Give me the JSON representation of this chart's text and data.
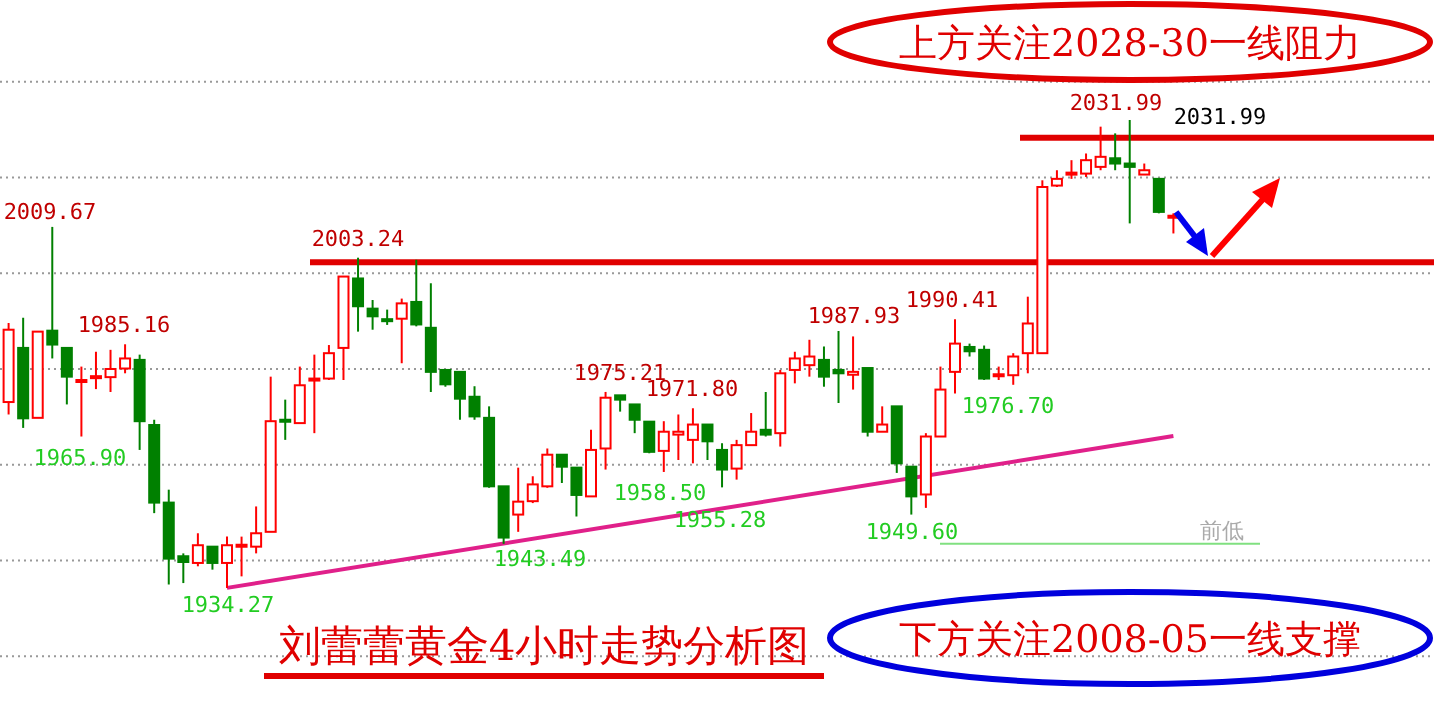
{
  "chart_data": {
    "type": "candlestick",
    "title": "刘蕾蕾黄金4小时走势分析图",
    "categories": [
      null,
      null,
      null,
      null,
      null,
      null,
      null,
      null,
      null,
      null,
      null,
      null,
      null,
      null,
      null,
      null,
      null,
      null,
      null,
      null,
      null,
      null,
      null,
      null,
      null,
      null,
      null,
      null,
      null,
      null,
      null,
      null,
      null,
      null,
      null,
      null,
      null,
      null,
      null,
      null,
      null,
      null,
      null,
      null,
      null,
      null,
      null,
      null,
      null,
      null,
      null,
      null,
      null,
      null,
      null,
      null,
      null,
      null,
      null,
      null,
      null,
      null,
      null,
      null,
      null,
      null,
      null,
      null,
      null,
      null,
      null,
      null,
      null,
      null,
      null,
      null,
      null,
      null,
      null,
      null,
      null
    ],
    "ohlc": [
      [
        1973.1,
        1989.6,
        1970.5,
        1988.2
      ],
      [
        1984.4,
        1990.7,
        1967.7,
        1969.7
      ],
      [
        1969.8,
        1987.8,
        1969.8,
        1987.8
      ],
      [
        1988.0,
        2009.67,
        1982.2,
        1985.1
      ],
      [
        1984.4,
        1984.4,
        1972.6,
        1978.4
      ],
      [
        1977.4,
        1980.5,
        1965.9,
        1977.7
      ],
      [
        1978.2,
        1983.6,
        1975.8,
        1978.5
      ],
      [
        1978.3,
        1984.0,
        1975.2,
        1980.0
      ],
      [
        1980.1,
        1985.16,
        1979.1,
        1982.2
      ],
      [
        1981.9,
        1983.0,
        1963.1,
        1969.1
      ],
      [
        1968.3,
        1969.4,
        1949.9,
        1952.1
      ],
      [
        1952.1,
        1954.8,
        1935.0,
        1940.4
      ],
      [
        1940.9,
        1941.5,
        1935.3,
        1939.7
      ],
      [
        1939.5,
        1945.7,
        1938.8,
        1943.2
      ],
      [
        1942.9,
        1942.9,
        1938.1,
        1939.5
      ],
      [
        1939.5,
        1945.0,
        1934.27,
        1943.2
      ],
      [
        1942.9,
        1945.0,
        1936.7,
        1943.3
      ],
      [
        1942.9,
        1951.3,
        1941.5,
        1945.7
      ],
      [
        1946.0,
        1978.4,
        1946.0,
        1969.1
      ],
      [
        1969.4,
        1973.6,
        1965.2,
        1969.1
      ],
      [
        1968.7,
        1980.5,
        1968.7,
        1976.6
      ],
      [
        1977.7,
        1983.0,
        1966.6,
        1978.0
      ],
      [
        1978.0,
        1985.0,
        1977.7,
        1983.3
      ],
      [
        1984.4,
        1999.3,
        1977.7,
        1999.3
      ],
      [
        1998.9,
        2003.24,
        1987.8,
        1993.1
      ],
      [
        1992.6,
        1994.4,
        1988.2,
        1991.0
      ],
      [
        1990.4,
        1992.4,
        1989.2,
        1990.1
      ],
      [
        1990.5,
        1994.7,
        1981.2,
        1993.7
      ],
      [
        1994.0,
        2002.8,
        1988.9,
        1989.3
      ],
      [
        1988.6,
        1997.9,
        1975.2,
        1979.4
      ],
      [
        1979.8,
        1979.8,
        1976.3,
        1976.8
      ],
      [
        1979.4,
        1979.4,
        1969.4,
        1973.8
      ],
      [
        1974.2,
        1976.4,
        1969.4,
        1970.1
      ],
      [
        1969.8,
        1972.2,
        1955.2,
        1955.5
      ],
      [
        1955.5,
        1955.5,
        1943.49,
        1944.8
      ],
      [
        1949.6,
        1959.4,
        1946.0,
        1952.3
      ],
      [
        1952.4,
        1957.6,
        1952.0,
        1955.9
      ],
      [
        1955.5,
        1963.4,
        1955.2,
        1962.1
      ],
      [
        1962.1,
        1962.1,
        1956.2,
        1959.6
      ],
      [
        1959.4,
        1959.4,
        1949.2,
        1953.7
      ],
      [
        1953.4,
        1967.3,
        1953.4,
        1963.1
      ],
      [
        1963.4,
        1975.21,
        1959.0,
        1974.0
      ],
      [
        1974.5,
        1974.5,
        1971.1,
        1973.6
      ],
      [
        1972.6,
        1972.6,
        1966.6,
        1969.4
      ],
      [
        1969.0,
        1969.0,
        1962.4,
        1962.7
      ],
      [
        1962.9,
        1969.1,
        1958.5,
        1966.9
      ],
      [
        1966.3,
        1970.5,
        1961.0,
        1966.9
      ],
      [
        1965.2,
        1971.8,
        1960.3,
        1968.4
      ],
      [
        1968.4,
        1968.4,
        1961.0,
        1964.9
      ],
      [
        1963.1,
        1964.5,
        1955.28,
        1959.0
      ],
      [
        1959.2,
        1965.2,
        1956.9,
        1964.1
      ],
      [
        1964.1,
        1970.8,
        1964.1,
        1966.9
      ],
      [
        1967.3,
        1975.2,
        1965.9,
        1966.3
      ],
      [
        1966.6,
        1979.8,
        1963.8,
        1979.1
      ],
      [
        1979.8,
        1983.6,
        1977.0,
        1982.2
      ],
      [
        1980.8,
        1986.1,
        1978.4,
        1982.6
      ],
      [
        1981.9,
        1984.7,
        1976.3,
        1978.4
      ],
      [
        1979.8,
        1987.93,
        1972.9,
        1979.1
      ],
      [
        1978.8,
        1986.8,
        1975.7,
        1979.4
      ],
      [
        1980.2,
        1980.2,
        1965.9,
        1966.9
      ],
      [
        1966.9,
        1972.2,
        1966.9,
        1968.4
      ],
      [
        1972.2,
        1972.2,
        1958.3,
        1960.3
      ],
      [
        1959.6,
        1959.6,
        1949.6,
        1953.4
      ],
      [
        1953.8,
        1966.6,
        1951.0,
        1965.9
      ],
      [
        1965.9,
        1980.5,
        1965.9,
        1975.7
      ],
      [
        1979.4,
        1990.41,
        1974.9,
        1985.3
      ],
      [
        1984.6,
        1985.3,
        1982.6,
        1983.7
      ],
      [
        1984.0,
        1984.9,
        1977.7,
        1978.0
      ],
      [
        1978.6,
        1980.5,
        1977.7,
        1978.9
      ],
      [
        1978.7,
        1983.3,
        1976.7,
        1982.6
      ],
      [
        1983.3,
        1995.1,
        1979.1,
        1989.5
      ],
      [
        1983.3,
        2019.4,
        1983.3,
        2018.0
      ],
      [
        2018.3,
        2021.5,
        2018.0,
        2019.7
      ],
      [
        2020.8,
        2023.6,
        2019.7,
        2021.0
      ],
      [
        2020.8,
        2025.0,
        2020.1,
        2023.6
      ],
      [
        2022.2,
        2030.6,
        2021.5,
        2024.3
      ],
      [
        2024.0,
        2029.2,
        2021.5,
        2022.9
      ],
      [
        2022.9,
        2031.99,
        2010.4,
        2022.2
      ],
      [
        2020.6,
        2022.9,
        2020.6,
        2021.5
      ],
      [
        2019.7,
        2019.7,
        2012.5,
        2012.8
      ],
      [
        2012.0,
        2012.5,
        2008.3,
        2011.8
      ]
    ],
    "colors": [
      "#ff0000",
      "#008000",
      "#ff0000",
      "#008000",
      "#008000",
      "#ff0000",
      "#ff0000",
      "#ff0000",
      "#ff0000",
      "#008000",
      "#008000",
      "#008000",
      "#008000",
      "#ff0000",
      "#008000",
      "#ff0000",
      "#ff0000",
      "#ff0000",
      "#ff0000",
      "#008000",
      "#ff0000",
      "#ff0000",
      "#ff0000",
      "#ff0000",
      "#008000",
      "#008000",
      "#008000",
      "#ff0000",
      "#008000",
      "#008000",
      "#008000",
      "#008000",
      "#008000",
      "#008000",
      "#008000",
      "#ff0000",
      "#ff0000",
      "#ff0000",
      "#008000",
      "#008000",
      "#ff0000",
      "#ff0000",
      "#008000",
      "#008000",
      "#008000",
      "#ff0000",
      "#ff0000",
      "#ff0000",
      "#008000",
      "#008000",
      "#ff0000",
      "#ff0000",
      "#008000",
      "#ff0000",
      "#ff0000",
      "#ff0000",
      "#008000",
      "#008000",
      "#ff0000",
      "#008000",
      "#ff0000",
      "#008000",
      "#008000",
      "#ff0000",
      "#ff0000",
      "#ff0000",
      "#008000",
      "#008000",
      "#ff0000",
      "#ff0000",
      "#ff0000",
      "#ff0000",
      "#ff0000",
      "#ff0000",
      "#ff0000",
      "#ff0000",
      "#008000",
      "#008000",
      "#ff0000",
      "#008000",
      "#ff0000"
    ],
    "series": [
      {
        "type": "line",
        "color": "#e0208a",
        "values": [
          null,
          null,
          null,
          null,
          null,
          null,
          null,
          null,
          null,
          null,
          null,
          null,
          null,
          null,
          null,
          1934.3,
          null,
          null,
          null,
          null,
          null,
          null,
          null,
          null,
          null,
          null,
          null,
          null,
          null,
          null,
          null,
          null,
          null,
          null,
          null,
          null,
          null,
          null,
          null,
          null,
          null,
          null,
          null,
          null,
          null,
          null,
          null,
          null,
          null,
          null,
          null,
          null,
          null,
          null,
          null,
          null,
          null,
          null,
          null,
          null,
          null,
          null,
          null,
          null,
          null,
          null,
          null,
          null,
          null,
          null,
          null,
          null,
          null,
          null,
          null,
          null,
          null,
          null,
          null,
          null,
          1966.0
        ]
      }
    ],
    "yticks": [
      {
        "value": 1920,
        "label": null
      },
      {
        "value": 1940,
        "label": null
      },
      {
        "value": 1960,
        "label": null
      },
      {
        "value": 1980,
        "label": null
      },
      {
        "value": 2000,
        "label": null
      },
      {
        "value": 2020,
        "label": null
      },
      {
        "value": 2040,
        "label": null
      }
    ],
    "grid": "y",
    "ref_lines": [
      {
        "axis": "y",
        "value": 2028.3,
        "color": "#e00000"
      },
      {
        "axis": "y",
        "value": 2002.3,
        "color": "#e00000"
      },
      {
        "axis": "y",
        "value": 1943.49,
        "label": "前低",
        "color": "#80e080"
      }
    ],
    "annotations": [
      {
        "text": "2009.67",
        "y": 2009.67
      },
      {
        "text": "1985.16",
        "y": 1985.16
      },
      {
        "text": "1965.90",
        "y": 1965.9
      },
      {
        "text": "2003.24",
        "y": 2003.24
      },
      {
        "text": "1934.27",
        "y": 1934.27
      },
      {
        "text": "1975.21",
        "y": 1975.21
      },
      {
        "text": "1971.80",
        "y": 1971.8
      },
      {
        "text": "1958.50",
        "y": 1958.5
      },
      {
        "text": "1955.28",
        "y": 1955.28
      },
      {
        "text": "1943.49",
        "y": 1943.49
      },
      {
        "text": "1987.93",
        "y": 1987.93
      },
      {
        "text": "1990.41",
        "y": 1990.41
      },
      {
        "text": "1976.70",
        "y": 1976.7
      },
      {
        "text": "1949.60",
        "y": 1949.6
      },
      "2031.99",
      "2031.99",
      "上方关注2028-30一线阻力",
      "下方关注2008-05一线支撑"
    ]
  }
}
